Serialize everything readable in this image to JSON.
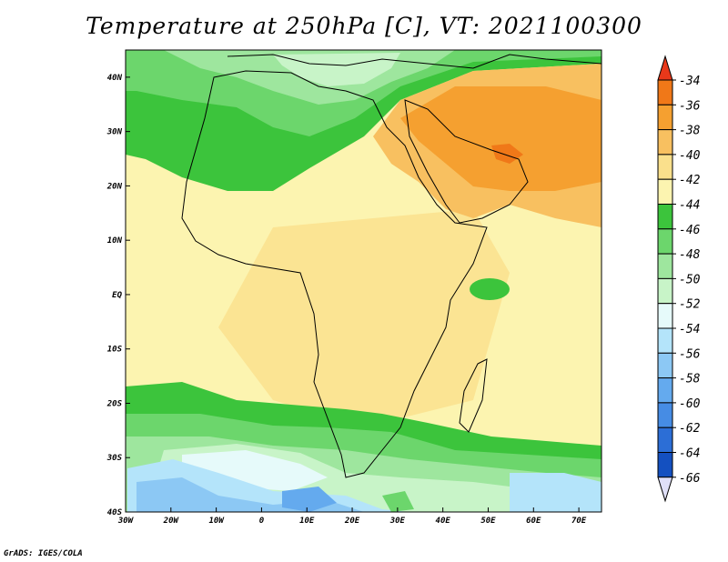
{
  "title": "Temperature at 250hPa [C], VT: 2021100300",
  "footer": "GrADS: IGES/COLA",
  "map": {
    "lon_range": [
      -30,
      75
    ],
    "lat_range": [
      -40,
      45
    ],
    "x_ticks": [
      {
        "value": -30,
        "label": "30W"
      },
      {
        "value": -20,
        "label": "20W"
      },
      {
        "value": -10,
        "label": "10W"
      },
      {
        "value": 0,
        "label": "0"
      },
      {
        "value": 10,
        "label": "10E"
      },
      {
        "value": 20,
        "label": "20E"
      },
      {
        "value": 30,
        "label": "30E"
      },
      {
        "value": 40,
        "label": "40E"
      },
      {
        "value": 50,
        "label": "50E"
      },
      {
        "value": 60,
        "label": "60E"
      },
      {
        "value": 70,
        "label": "70E"
      }
    ],
    "y_ticks": [
      {
        "value": 40,
        "label": "40N"
      },
      {
        "value": 30,
        "label": "30N"
      },
      {
        "value": 20,
        "label": "20N"
      },
      {
        "value": 10,
        "label": "10N"
      },
      {
        "value": 0,
        "label": "EQ"
      },
      {
        "value": -10,
        "label": "10S"
      },
      {
        "value": -20,
        "label": "20S"
      },
      {
        "value": -30,
        "label": "30S"
      },
      {
        "value": -40,
        "label": "40S"
      }
    ]
  },
  "colorbar": {
    "labels": [
      "-34",
      "-36",
      "-38",
      "-40",
      "-42",
      "-44",
      "-46",
      "-48",
      "-50",
      "-52",
      "-54",
      "-56",
      "-58",
      "-60",
      "-62",
      "-64",
      "-66"
    ],
    "colors": [
      "#e8381a",
      "#f07818",
      "#f5a030",
      "#f8c060",
      "#fae08c",
      "#fcf4b0",
      "#3cc43c",
      "#6cd66c",
      "#9ee69e",
      "#c8f4c8",
      "#e6fafa",
      "#b4e4fa",
      "#8cc8f4",
      "#64aaee",
      "#468ce4",
      "#2c6ed6",
      "#1450c0",
      "#0a2c90",
      "#e0e0f8"
    ]
  }
}
